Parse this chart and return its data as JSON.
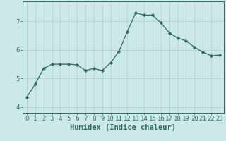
{
  "x": [
    0,
    1,
    2,
    3,
    4,
    5,
    6,
    7,
    8,
    9,
    10,
    11,
    12,
    13,
    14,
    15,
    16,
    17,
    18,
    19,
    20,
    21,
    22,
    23
  ],
  "y": [
    4.35,
    4.8,
    5.35,
    5.5,
    5.5,
    5.5,
    5.48,
    5.28,
    5.35,
    5.28,
    5.55,
    5.95,
    6.65,
    7.3,
    7.22,
    7.22,
    6.95,
    6.6,
    6.42,
    6.32,
    6.1,
    5.92,
    5.8,
    5.82
  ],
  "line_color": "#2d6b5e",
  "marker": "D",
  "marker_size": 2.2,
  "xlabel": "Humidex (Indice chaleur)",
  "bg_color": "#cce8e8",
  "grid_color": "#aacfcf",
  "ylim": [
    3.8,
    7.7
  ],
  "xlim": [
    -0.5,
    23.5
  ],
  "yticks": [
    4,
    5,
    6,
    7
  ],
  "xticks": [
    0,
    1,
    2,
    3,
    4,
    5,
    6,
    7,
    8,
    9,
    10,
    11,
    12,
    13,
    14,
    15,
    16,
    17,
    18,
    19,
    20,
    21,
    22,
    23
  ],
  "tick_color": "#2d6b5e",
  "xlabel_fontsize": 7.5,
  "tick_fontsize": 6.5,
  "linewidth": 0.9
}
